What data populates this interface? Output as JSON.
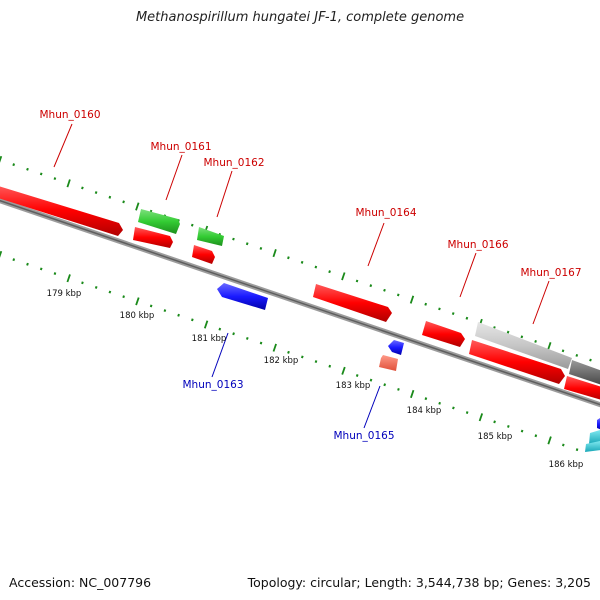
{
  "header": {
    "title": "Methanospirillum hungatei JF-1, complete genome"
  },
  "footer": {
    "accession": "Accession: NC_007796",
    "summary": "Topology: circular; Length: 3,544,738 bp; Genes: 3,205"
  },
  "colors": {
    "forward_gene": "#ff0000",
    "forward_label": "#cc0000",
    "reverse_gene": "#1a1aff",
    "reverse_label": "#0000bb",
    "rna_gene": "#33cc33",
    "tick": "#1a8a1a",
    "backbone": "#7a7a7a"
  },
  "genes": [
    {
      "label": "Mhun_0160",
      "strand": "forward",
      "color_key": "forward_gene"
    },
    {
      "label": "Mhun_0161",
      "strand": "forward",
      "color_key": "rna_gene"
    },
    {
      "label": "Mhun_0162",
      "strand": "forward",
      "color_key": "rna_gene"
    },
    {
      "label": "Mhun_0163",
      "strand": "reverse",
      "color_key": "reverse_gene"
    },
    {
      "label": "Mhun_0164",
      "strand": "forward",
      "color_key": "forward_gene"
    },
    {
      "label": "Mhun_0165",
      "strand": "reverse",
      "color_key": "reverse_gene"
    },
    {
      "label": "Mhun_0166",
      "strand": "forward",
      "color_key": "forward_gene"
    },
    {
      "label": "Mhun_0167",
      "strand": "forward",
      "color_key": "forward_gene"
    }
  ],
  "scale_labels": [
    "179 kbp",
    "180 kbp",
    "181 kbp",
    "182 kbp",
    "183 kbp",
    "184 kbp",
    "185 kbp",
    "186 kbp"
  ]
}
